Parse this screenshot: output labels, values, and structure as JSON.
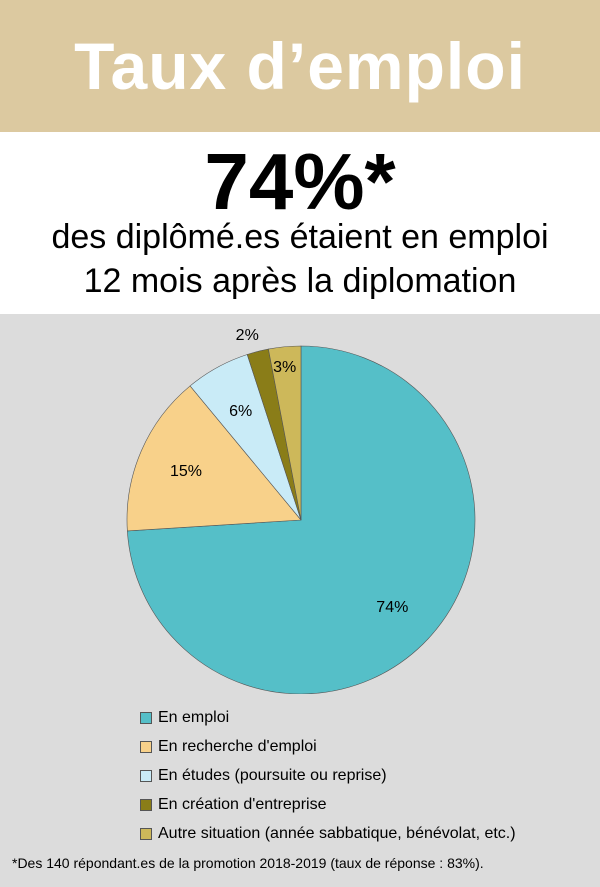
{
  "header": {
    "title": "Taux d’emploi",
    "big_value": "74%*",
    "line1": "des diplômé.es étaient en emploi",
    "line2": "12 mois après la diplomation"
  },
  "chart_data": {
    "type": "pie",
    "categories": [
      "En emploi",
      "En recherche d'emploi",
      "En études (poursuite ou reprise)",
      "En création d'entreprise",
      "Autre situation (année sabbatique, bénévolat, etc.)"
    ],
    "values": [
      74,
      15,
      6,
      2,
      3
    ],
    "labels": [
      "74%",
      "15%",
      "6%",
      "2%",
      "3%"
    ],
    "colors": [
      "#55bfc8",
      "#f8d18a",
      "#c9ebf7",
      "#8a7d18",
      "#cdb85a"
    ],
    "legend_position": "bottom"
  },
  "footnote": "*Des 140 répondant.es de la promotion 2018-2019 (taux de réponse : 83%)."
}
